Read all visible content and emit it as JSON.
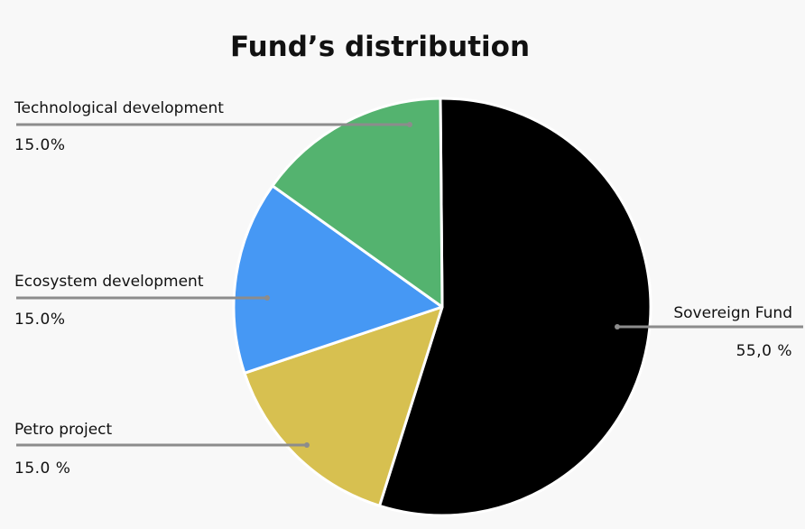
{
  "chart_data": {
    "type": "pie",
    "title": "Fund’s distribution",
    "slices": [
      {
        "label": "Sovereign Fund",
        "value": 55,
        "display": "55,0 %",
        "color": "#000000"
      },
      {
        "label": "Petro project",
        "value": 15,
        "display": "15.0 %",
        "color": "#d7c050"
      },
      {
        "label": "Ecosystem development",
        "value": 15,
        "display": "15.0%",
        "color": "#4698f4"
      },
      {
        "label": "Technological development",
        "value": 15,
        "display": "15.0%",
        "color": "#54b36f"
      }
    ],
    "slice_border_color": "#ffffff",
    "leader_line_color": "#8c8c8c"
  }
}
